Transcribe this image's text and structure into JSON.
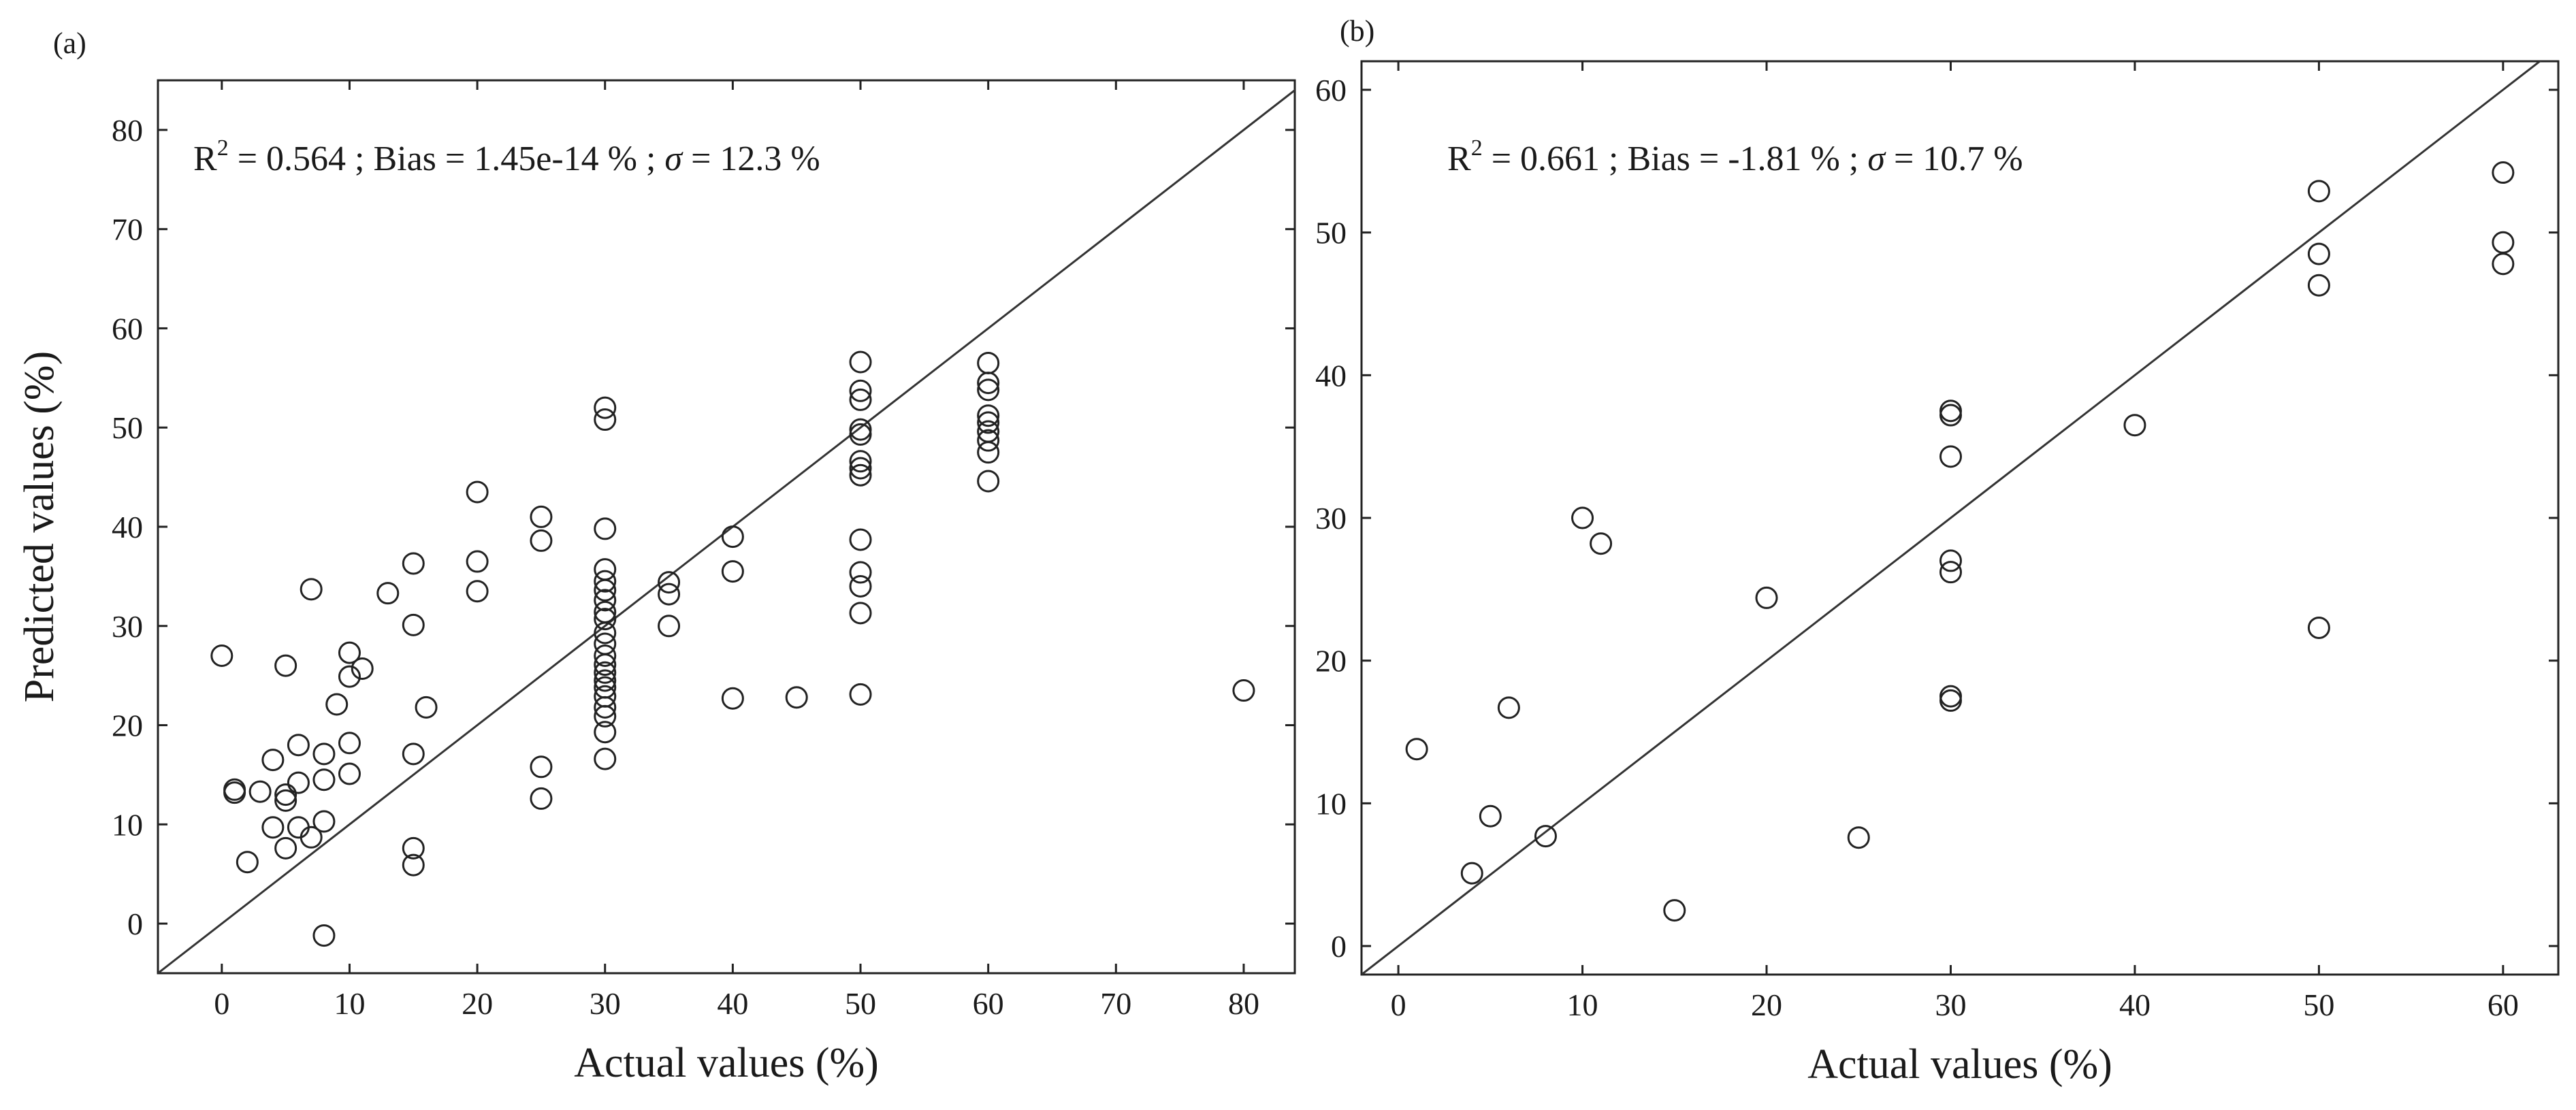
{
  "chart_data": [
    {
      "type": "scatter",
      "panel_label": "(a)",
      "annotation": {
        "r2_label": "R",
        "r2_exp": "2",
        "rest": " = 0.564 ; Bias = 1.45e-14 % ; ",
        "sigma_symbol": "σ",
        "sigma_rest": " = 12.3 %"
      },
      "xlabel": "Actual values (%)",
      "ylabel": "Predicted values (%)",
      "xlim": [
        -5,
        84
      ],
      "ylim": [
        -5,
        85
      ],
      "xticks": [
        0,
        10,
        20,
        30,
        40,
        50,
        60,
        70,
        80
      ],
      "yticks": [
        0,
        10,
        20,
        30,
        40,
        50,
        60,
        70,
        80
      ],
      "identity_line": true,
      "grid": false,
      "marker": "open-circle",
      "points": [
        [
          0,
          27.0
        ],
        [
          1,
          13.2
        ],
        [
          1,
          13.5
        ],
        [
          2,
          6.2
        ],
        [
          3,
          13.3
        ],
        [
          4,
          16.5
        ],
        [
          4,
          9.7
        ],
        [
          5,
          26.0
        ],
        [
          5,
          12.4
        ],
        [
          5,
          13.0
        ],
        [
          5,
          7.6
        ],
        [
          6,
          18.0
        ],
        [
          6,
          14.2
        ],
        [
          6,
          9.7
        ],
        [
          7,
          33.7
        ],
        [
          7,
          8.7
        ],
        [
          8,
          17.1
        ],
        [
          8,
          14.5
        ],
        [
          8,
          10.3
        ],
        [
          8,
          -1.2
        ],
        [
          9,
          22.1
        ],
        [
          10,
          27.3
        ],
        [
          10,
          24.9
        ],
        [
          10,
          18.2
        ],
        [
          10,
          15.1
        ],
        [
          11,
          25.7
        ],
        [
          13,
          33.3
        ],
        [
          15,
          36.3
        ],
        [
          15,
          30.1
        ],
        [
          15,
          17.1
        ],
        [
          15,
          7.6
        ],
        [
          15,
          5.9
        ],
        [
          16,
          21.8
        ],
        [
          20,
          43.5
        ],
        [
          20,
          36.5
        ],
        [
          20,
          33.5
        ],
        [
          25,
          41.0
        ],
        [
          25,
          38.6
        ],
        [
          25,
          15.8
        ],
        [
          25,
          12.6
        ],
        [
          30,
          52.0
        ],
        [
          30,
          50.8
        ],
        [
          30,
          39.8
        ],
        [
          30,
          35.7
        ],
        [
          30,
          34.5
        ],
        [
          30,
          33.6
        ],
        [
          30,
          32.6
        ],
        [
          30,
          31.4
        ],
        [
          30,
          30.7
        ],
        [
          30,
          29.3
        ],
        [
          30,
          28.2
        ],
        [
          30,
          27.0
        ],
        [
          30,
          26.1
        ],
        [
          30,
          25.3
        ],
        [
          30,
          24.5
        ],
        [
          30,
          23.8
        ],
        [
          30,
          22.9
        ],
        [
          30,
          21.8
        ],
        [
          30,
          20.9
        ],
        [
          30,
          19.3
        ],
        [
          30,
          16.6
        ],
        [
          35,
          34.4
        ],
        [
          35,
          33.2
        ],
        [
          35,
          30.0
        ],
        [
          40,
          39.0
        ],
        [
          40,
          35.5
        ],
        [
          40,
          22.7
        ],
        [
          45,
          22.8
        ],
        [
          50,
          56.6
        ],
        [
          50,
          53.7
        ],
        [
          50,
          52.8
        ],
        [
          50,
          49.8
        ],
        [
          50,
          49.3
        ],
        [
          50,
          46.6
        ],
        [
          50,
          45.9
        ],
        [
          50,
          45.2
        ],
        [
          50,
          38.7
        ],
        [
          50,
          35.4
        ],
        [
          50,
          34.0
        ],
        [
          50,
          31.3
        ],
        [
          50,
          23.1
        ],
        [
          60,
          56.5
        ],
        [
          60,
          54.5
        ],
        [
          60,
          53.8
        ],
        [
          60,
          51.2
        ],
        [
          60,
          50.5
        ],
        [
          60,
          49.6
        ],
        [
          60,
          48.7
        ],
        [
          60,
          47.5
        ],
        [
          60,
          44.6
        ],
        [
          80,
          23.5
        ]
      ]
    },
    {
      "type": "scatter",
      "panel_label": "(b)",
      "annotation": {
        "r2_label": "R",
        "r2_exp": "2",
        "rest": " = 0.661 ; Bias = -1.81 % ; ",
        "sigma_symbol": "σ",
        "sigma_rest": " = 10.7 %"
      },
      "xlabel": "Actual values (%)",
      "ylabel": "",
      "xlim": [
        -2,
        63
      ],
      "ylim": [
        -2,
        62
      ],
      "xticks": [
        0,
        10,
        20,
        30,
        40,
        50,
        60
      ],
      "yticks": [
        0,
        10,
        20,
        30,
        40,
        50,
        60
      ],
      "identity_line": true,
      "grid": false,
      "marker": "open-circle",
      "points": [
        [
          1,
          13.8
        ],
        [
          4,
          5.1
        ],
        [
          5,
          9.1
        ],
        [
          6,
          16.7
        ],
        [
          8,
          7.7
        ],
        [
          10,
          30.0
        ],
        [
          11,
          28.2
        ],
        [
          15,
          2.5
        ],
        [
          20,
          24.4
        ],
        [
          25,
          7.6
        ],
        [
          30,
          37.5
        ],
        [
          30,
          37.2
        ],
        [
          30,
          34.3
        ],
        [
          30,
          27.0
        ],
        [
          30,
          26.2
        ],
        [
          30,
          17.5
        ],
        [
          30,
          17.2
        ],
        [
          40,
          36.5
        ],
        [
          50,
          52.9
        ],
        [
          50,
          48.5
        ],
        [
          50,
          46.3
        ],
        [
          50,
          22.3
        ],
        [
          60,
          54.2
        ],
        [
          60,
          49.3
        ],
        [
          60,
          47.8
        ]
      ]
    }
  ]
}
